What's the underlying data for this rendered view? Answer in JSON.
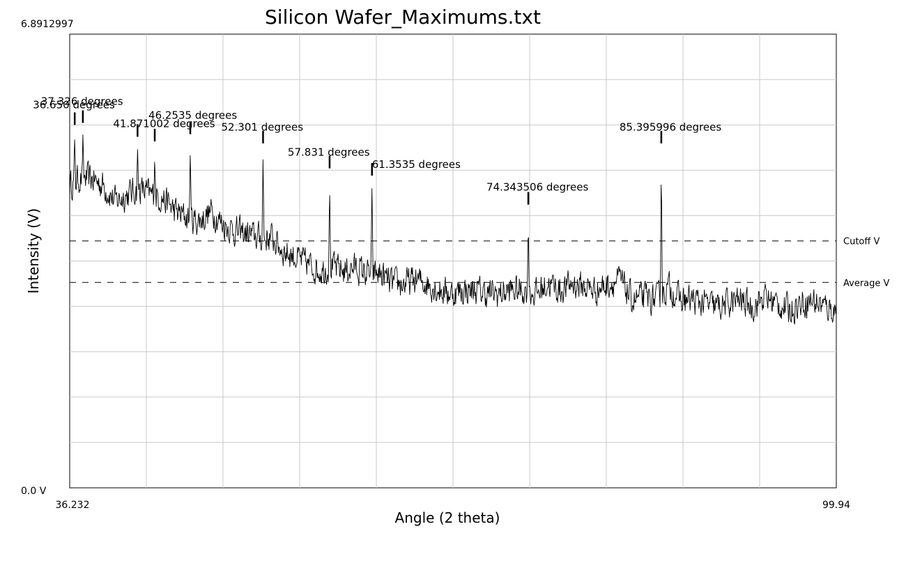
{
  "chart_data": {
    "type": "line",
    "title": "Silicon Wafer_Maximums.txt",
    "xlabel": "Angle (2 theta)",
    "ylabel": "Intensity (V)",
    "xlim": [
      36.232,
      99.94
    ],
    "ylim": [
      0.0,
      6.8912997
    ],
    "x_tick_labels": [
      "36.232",
      "99.94"
    ],
    "y_tick_labels": [
      "0.0 V",
      "6.8912997"
    ],
    "grid": true,
    "grid_divisions": {
      "x": 10,
      "y": 10
    },
    "reference_lines": [
      {
        "name": "Cutoff V",
        "y": 3.75,
        "style": "dashed"
      },
      {
        "name": "Average V",
        "y": 3.12,
        "style": "dashed"
      }
    ],
    "peaks": [
      {
        "x": 36.65,
        "y": 5.47,
        "label": "36.650 degrees"
      },
      {
        "x": 37.326,
        "y": 5.5,
        "label": "37.326 degrees"
      },
      {
        "x": 41.871002,
        "y": 5.29,
        "label": "41.871002 degrees"
      },
      {
        "x": 43.3,
        "y": 5.22,
        "label": ""
      },
      {
        "x": 46.2535,
        "y": 5.33,
        "label": "46.2535 degrees"
      },
      {
        "x": 52.301,
        "y": 5.19,
        "label": "52.301 degrees"
      },
      {
        "x": 57.831,
        "y": 4.81,
        "label": "57.831 degrees"
      },
      {
        "x": 61.3535,
        "y": 4.7,
        "label": "61.3535 degrees"
      },
      {
        "x": 74.343506,
        "y": 4.26,
        "label": "74.343506 degrees"
      },
      {
        "x": 85.395996,
        "y": 5.19,
        "label": "85.395996 degrees"
      }
    ],
    "series": [
      {
        "color": "#000000",
        "x": [
          36.232,
          37.0,
          38.0,
          39.0,
          40.0,
          41.0,
          42.0,
          43.0,
          44.0,
          45.0,
          46.0,
          47.0,
          48.0,
          49.0,
          50.0,
          51.0,
          52.0,
          53.0,
          54.0,
          55.0,
          56.0,
          57.0,
          58.0,
          59.0,
          60.0,
          61.0,
          62.0,
          63.0,
          64.0,
          65.0,
          66.0,
          67.0,
          68.0,
          69.0,
          70.0,
          71.0,
          72.0,
          73.0,
          74.0,
          75.0,
          76.0,
          77.0,
          78.0,
          79.0,
          80.0,
          81.0,
          82.0,
          83.0,
          84.0,
          85.0,
          86.0,
          87.0,
          88.0,
          89.0,
          90.0,
          91.0,
          92.0,
          93.0,
          94.0,
          95.0,
          96.0,
          97.0,
          98.0,
          99.0,
          99.94
        ],
        "y": [
          4.6,
          4.7,
          4.7,
          4.6,
          4.35,
          4.45,
          4.55,
          4.45,
          4.4,
          4.2,
          4.1,
          4.05,
          4.2,
          4.0,
          3.9,
          3.85,
          3.8,
          3.8,
          3.6,
          3.5,
          3.4,
          3.3,
          3.35,
          3.3,
          3.35,
          3.25,
          3.25,
          3.1,
          3.1,
          3.15,
          3.1,
          3.0,
          2.95,
          3.0,
          3.0,
          2.95,
          2.95,
          3.0,
          3.0,
          2.95,
          3.1,
          3.0,
          3.1,
          3.05,
          3.0,
          3.1,
          3.15,
          2.85,
          2.9,
          2.85,
          3.05,
          2.85,
          2.85,
          2.8,
          2.75,
          2.8,
          2.85,
          2.75,
          2.9,
          2.8,
          2.7,
          2.8,
          2.85,
          2.75,
          2.7
        ]
      }
    ]
  }
}
